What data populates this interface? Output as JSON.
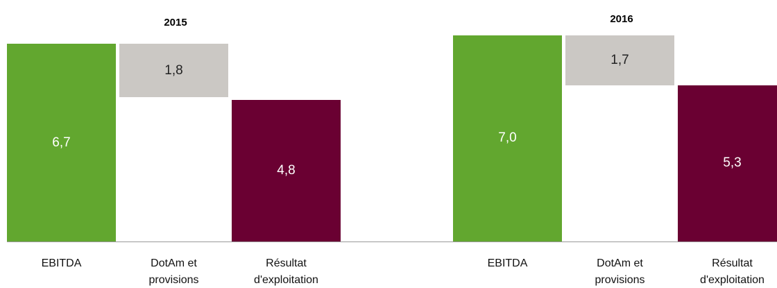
{
  "chart_data": [
    {
      "type": "waterfall",
      "title": "2015",
      "categories": [
        "EBITDA",
        "DotAm et provisions",
        "Résultat d'exploitation"
      ],
      "values": [
        6.7,
        1.8,
        4.8
      ],
      "value_labels": [
        "6,7",
        "1,8",
        "4,8"
      ],
      "colors": [
        "#62a72f",
        "#cbc8c4",
        "#6a0032"
      ]
    },
    {
      "type": "waterfall",
      "title": "2016",
      "categories": [
        "EBITDA",
        "DotAm et provisions",
        "Résultat d'exploitation"
      ],
      "values": [
        7.0,
        1.7,
        5.3
      ],
      "value_labels": [
        "7,0",
        "1,7",
        "5,3"
      ],
      "colors": [
        "#62a72f",
        "#cbc8c4",
        "#6a0032"
      ]
    }
  ]
}
